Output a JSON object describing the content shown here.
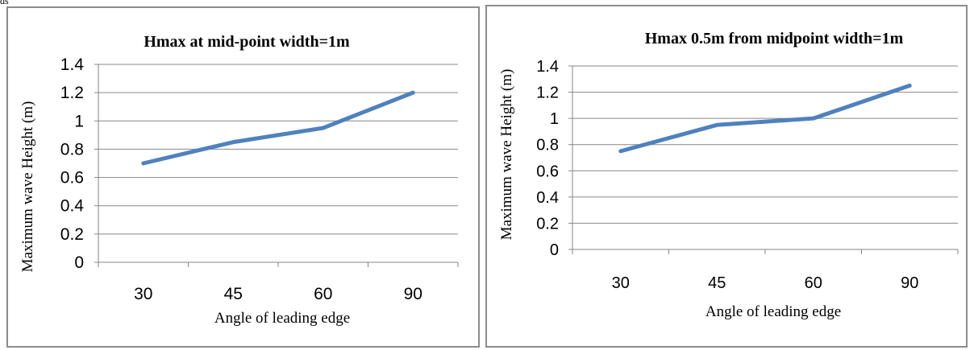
{
  "stray_text": "ds",
  "chart_data": [
    {
      "type": "line",
      "title": "Hmax at mid-point width=1m",
      "xlabel": "Angle of leading edge",
      "ylabel": "Maximum wave Height (m)",
      "categories": [
        "30",
        "45",
        "60",
        "90"
      ],
      "series": [
        {
          "values": [
            0.7,
            0.85,
            0.95,
            1.2
          ]
        }
      ],
      "ylim": [
        0,
        1.4
      ],
      "yticks": [
        "0",
        "0.2",
        "0.4",
        "0.6",
        "0.8",
        "1",
        "1.2",
        "1.4"
      ],
      "grid": true,
      "line_color": "#4f81bd"
    },
    {
      "type": "line",
      "title": "Hmax 0.5m from midpoint width=1m",
      "xlabel": "Angle of leading edge",
      "ylabel": "Maximum wave Height (m)",
      "categories": [
        "30",
        "45",
        "60",
        "90"
      ],
      "series": [
        {
          "values": [
            0.75,
            0.95,
            1.0,
            1.25
          ]
        }
      ],
      "ylim": [
        0,
        1.4
      ],
      "yticks": [
        "0",
        "0.2",
        "0.4",
        "0.6",
        "0.8",
        "1",
        "1.2",
        "1.4"
      ],
      "grid": true,
      "line_color": "#4f81bd"
    }
  ]
}
